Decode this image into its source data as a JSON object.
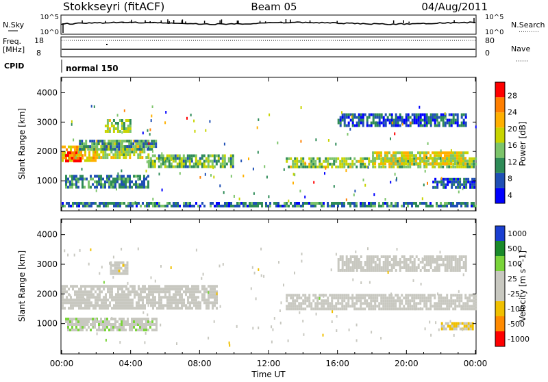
{
  "header": {
    "station": "Stokkseyri (fitACF)",
    "beam": "Beam 05",
    "date": "04/Aug/2011"
  },
  "top_panels": {
    "nsky_label": "N.Sky",
    "nsky_ticks": [
      "10^5",
      "10^0"
    ],
    "nsearch_label": "N.Search",
    "nsearch_ticks": [
      "10^5",
      "10^0"
    ],
    "freq_label_1": "Freq.",
    "freq_label_2": "[MHz]",
    "freq_ticks": [
      "18",
      "8"
    ],
    "nave_label": "Nave",
    "nave_ticks": [
      "80",
      "0"
    ],
    "cpid_label": "CPID",
    "cpid_value": "normal 150"
  },
  "colors": {
    "power_scale": [
      "#0000ff",
      "#1f4fb5",
      "#2e8b57",
      "#7cc46a",
      "#c8d400",
      "#ffb000",
      "#ff7f00",
      "#ff0000"
    ],
    "velocity_scale": [
      "#1a3fd1",
      "#1a8a2a",
      "#7ad43a",
      "#c8c8c0",
      "#c8c8c0",
      "#f0c000",
      "#ff8a00",
      "#ff0000"
    ],
    "ground_scatter": "#c8c8c0"
  },
  "chart_data": [
    {
      "type": "heatmap",
      "title": "Power",
      "ylabel": "Slant Range [km]",
      "yticks": [
        "1000",
        "2000",
        "3000",
        "4000"
      ],
      "ylim": [
        0,
        4500
      ],
      "xlim": [
        0,
        24
      ],
      "colorbar": {
        "label": "Power [dB]",
        "ticks": [
          "4",
          "8",
          "12",
          "16",
          "20",
          "24",
          "28"
        ],
        "range": [
          0,
          30
        ]
      },
      "regions": [
        {
          "t0": 0.0,
          "t1": 2.0,
          "r0": 1700,
          "r1": 2200,
          "value": 20
        },
        {
          "t0": 0.2,
          "t1": 1.2,
          "r0": 1700,
          "r1": 2000,
          "value": 27
        },
        {
          "t0": 2.0,
          "t1": 5.0,
          "r0": 1800,
          "r1": 2400,
          "value": 16
        },
        {
          "t0": 2.5,
          "t1": 4.0,
          "r0": 2700,
          "r1": 3100,
          "value": 14
        },
        {
          "t0": 5.0,
          "t1": 10.0,
          "r0": 1500,
          "r1": 1900,
          "value": 12
        },
        {
          "t0": 0.2,
          "t1": 5.0,
          "r0": 800,
          "r1": 1200,
          "value": 9
        },
        {
          "t0": 1.0,
          "t1": 5.5,
          "r0": 2100,
          "r1": 2400,
          "value": 10
        },
        {
          "t0": 13.0,
          "t1": 24.0,
          "r0": 1500,
          "r1": 1800,
          "value": 14
        },
        {
          "t0": 18.0,
          "t1": 23.5,
          "r0": 1600,
          "r1": 2000,
          "value": 17
        },
        {
          "t0": 16.0,
          "t1": 23.5,
          "r0": 2900,
          "r1": 3300,
          "value": 6
        },
        {
          "t0": 21.5,
          "t1": 24.0,
          "r0": 800,
          "r1": 1100,
          "value": 6
        },
        {
          "t0": 0.0,
          "t1": 24.0,
          "r0": 180,
          "r1": 280,
          "value": 8
        }
      ]
    },
    {
      "type": "heatmap",
      "title": "Velocity",
      "ylabel": "Slant Range [km]",
      "xlabel": "Time UT",
      "xticks": [
        "00:00",
        "04:00",
        "08:00",
        "12:00",
        "16:00",
        "20:00",
        "00:00"
      ],
      "yticks": [
        "1000",
        "2000",
        "3000",
        "4000"
      ],
      "ylim": [
        0,
        4500
      ],
      "xlim": [
        0,
        24
      ],
      "colorbar": {
        "label": "Velocity [m s^-1]",
        "ticks": [
          "1000",
          "500",
          "100",
          "25",
          "-25",
          "-100",
          "-500",
          "-1000"
        ],
        "range": [
          -1200,
          1200
        ]
      },
      "regions": [
        {
          "t0": 0.0,
          "t1": 9.0,
          "r0": 1500,
          "r1": 2300,
          "value": "ground"
        },
        {
          "t0": 13.0,
          "t1": 24.0,
          "r0": 1500,
          "r1": 2000,
          "value": "ground"
        },
        {
          "t0": 16.0,
          "t1": 23.5,
          "r0": 2800,
          "r1": 3300,
          "value": "ground"
        },
        {
          "t0": 0.2,
          "t1": 5.5,
          "r0": 800,
          "r1": 1200,
          "value": 150
        },
        {
          "t0": 2.8,
          "t1": 3.8,
          "r0": 2700,
          "r1": 3100,
          "value": -150
        },
        {
          "t0": 22.0,
          "t1": 23.8,
          "r0": 800,
          "r1": 1050,
          "value": -300
        }
      ]
    }
  ],
  "time_axis": {
    "xlabel": "Time UT",
    "xticks": [
      "00:00",
      "04:00",
      "08:00",
      "12:00",
      "16:00",
      "20:00",
      "00:00"
    ]
  }
}
